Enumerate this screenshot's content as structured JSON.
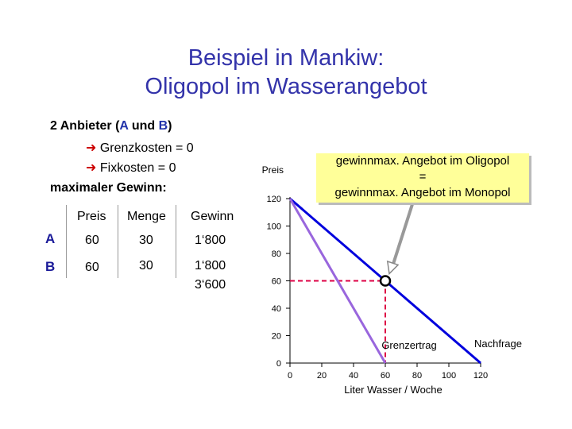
{
  "title": {
    "line1": "Beispiel in Mankiw:",
    "line2": "Oligopol im Wasserangebot"
  },
  "intro": {
    "line1_prefix": "2 Anbieter (",
    "line1_a": "A",
    "line1_mid": " und ",
    "line1_b": "B",
    "line1_suffix": ")",
    "arrow_icon": "➜",
    "line2": "Grenzkosten = 0",
    "line3": "Fixkosten = 0",
    "line4": "maximaler Gewinn:"
  },
  "table": {
    "headers": [
      "Preis",
      "Menge",
      "Gewinn"
    ],
    "rows": [
      {
        "firm": "A",
        "preis": "60",
        "menge": "30",
        "gewinn": "1‘800"
      },
      {
        "firm": "B",
        "preis": "60",
        "menge": "30",
        "gewinn": "1‘800"
      }
    ],
    "total": "3‘600"
  },
  "callout": {
    "line1": "gewinnmax. Angebot im Oligopol",
    "line2": "=",
    "line3": "gewinnmax. Angebot im Monopol",
    "background": "#ffff99"
  },
  "chart_data": {
    "type": "line",
    "ylabel": "Preis",
    "xlabel": "Liter Wasser / Woche",
    "xlim": [
      0,
      120
    ],
    "ylim": [
      0,
      120
    ],
    "xticks": [
      0,
      20,
      40,
      60,
      80,
      100,
      120
    ],
    "yticks": [
      0,
      20,
      40,
      60,
      80,
      100,
      120
    ],
    "grid": false,
    "series": [
      {
        "name": "Nachfrage",
        "color": "#0000dd",
        "x": [
          0,
          120
        ],
        "y": [
          120,
          0
        ]
      },
      {
        "name": "Grenzertrag",
        "color": "#9966dd",
        "x": [
          0,
          60
        ],
        "y": [
          120,
          0
        ]
      }
    ],
    "optimum": {
      "x": 60,
      "y": 60
    },
    "guide_color": "#dd0044"
  },
  "colors": {
    "title": "#3333aa",
    "firm": "#1a1a99",
    "arrow": "#cc0000",
    "demand": "#0000dd",
    "marginal_revenue": "#9966dd",
    "guide": "#dd0044"
  }
}
